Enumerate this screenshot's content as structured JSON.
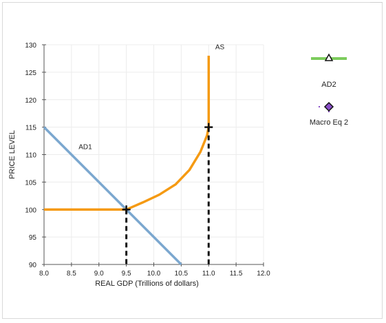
{
  "chart_data": {
    "type": "line",
    "xlabel": "REAL GDP (Trillions of dollars)",
    "ylabel": "PRICE LEVEL",
    "xlim": [
      8.0,
      12.0
    ],
    "ylim": [
      90,
      130
    ],
    "x_ticks": [
      "8.0",
      "8.5",
      "9.0",
      "9.5",
      "10.0",
      "10.5",
      "11.0",
      "11.5",
      "12.0"
    ],
    "y_ticks": [
      "90",
      "95",
      "100",
      "105",
      "110",
      "115",
      "120",
      "125",
      "130"
    ],
    "grid": true,
    "series": [
      {
        "name": "AD1",
        "color": "#7ba7cf",
        "points": [
          [
            8.0,
            115
          ],
          [
            10.5,
            90
          ]
        ]
      },
      {
        "name": "AS",
        "color": "#f59a13",
        "points": [
          [
            8.0,
            100
          ],
          [
            9.5,
            100
          ],
          [
            9.8,
            101.3
          ],
          [
            10.1,
            102.7
          ],
          [
            10.4,
            104.6
          ],
          [
            10.65,
            107.2
          ],
          [
            10.85,
            110.5
          ],
          [
            10.97,
            113.5
          ],
          [
            11.0,
            115
          ],
          [
            11.0,
            128
          ]
        ]
      }
    ],
    "markers": [
      {
        "x": 9.5,
        "y": 100,
        "symbol": "cross"
      },
      {
        "x": 11.0,
        "y": 115,
        "symbol": "cross"
      }
    ],
    "drop_lines": [
      {
        "x": 9.5,
        "y": 100
      },
      {
        "x": 11.0,
        "y": 115
      }
    ]
  },
  "legend": [
    {
      "label": "AD2",
      "icon": "triangle-line-icon",
      "color": "#7ccc5c"
    },
    {
      "label": "Macro Eq 2",
      "icon": "diamond-point-icon",
      "color": "#8a4fc9"
    }
  ]
}
